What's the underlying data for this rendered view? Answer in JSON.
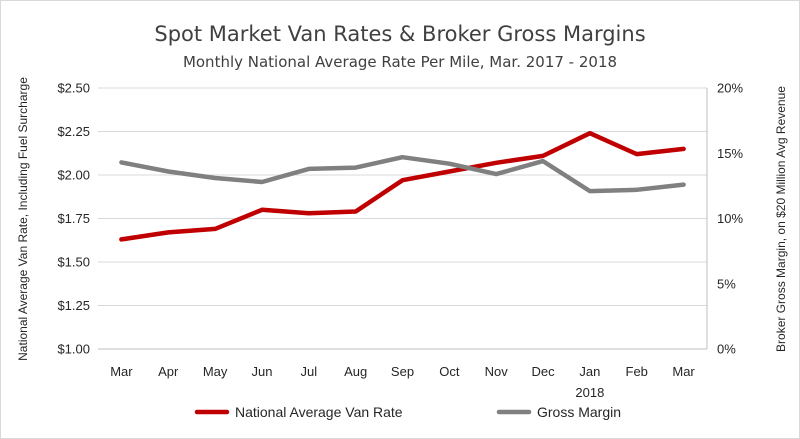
{
  "chart_data": {
    "type": "line",
    "title": "Spot Market Van Rates & Broker Gross Margins",
    "subtitle": "Monthly National Average Rate Per Mile, Mar. 2017 - 2018",
    "ylabel_left": "National Average Van Rate, Including Fuel Surcharge",
    "ylabel_right": "Broker Gross Margin, on $20 Million Avg Revenue",
    "categories": [
      "Mar",
      "Apr",
      "May",
      "Jun",
      "Jul",
      "Aug",
      "Sep",
      "Oct",
      "Nov",
      "Dec",
      "Jan",
      "Feb",
      "Mar"
    ],
    "category_sublabels": [
      "",
      "",
      "",
      "",
      "",
      "",
      "",
      "",
      "",
      "",
      "2018",
      "",
      ""
    ],
    "y_left": {
      "min": 1.0,
      "max": 2.5,
      "ticks": [
        1.0,
        1.25,
        1.5,
        1.75,
        2.0,
        2.25,
        2.5
      ],
      "tick_labels": [
        "$1.00",
        "$1.25",
        "$1.50",
        "$1.75",
        "$2.00",
        "$2.25",
        "$2.50"
      ]
    },
    "y_right": {
      "min": 0,
      "max": 20,
      "ticks": [
        0,
        5,
        10,
        15,
        20
      ],
      "tick_labels": [
        "0%",
        "5%",
        "10%",
        "15%",
        "20%"
      ]
    },
    "grid": true,
    "legend_position": "bottom",
    "series": [
      {
        "name": "National Average Van Rate",
        "axis": "left",
        "color": "#c00000",
        "values": [
          1.63,
          1.67,
          1.69,
          1.8,
          1.78,
          1.79,
          1.97,
          2.02,
          2.07,
          2.11,
          2.24,
          2.12,
          2.15
        ]
      },
      {
        "name": "Gross Margin",
        "axis": "right",
        "color": "#808080",
        "values": [
          14.3,
          13.6,
          13.1,
          12.8,
          13.8,
          13.9,
          14.7,
          14.2,
          13.4,
          14.4,
          12.1,
          12.2,
          12.6
        ]
      }
    ]
  }
}
